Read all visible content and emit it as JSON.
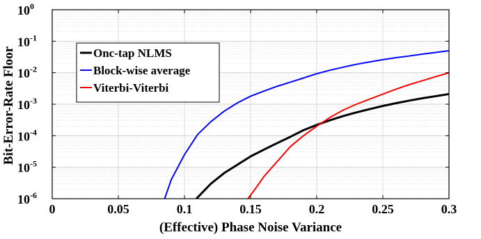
{
  "chart_data": {
    "type": "line",
    "title": "",
    "xlabel": "(Effective) Phase Noise Variance",
    "ylabel": "Bit-Error-Rate Floor",
    "xlim": [
      0,
      0.3
    ],
    "ylim": [
      1e-06,
      1
    ],
    "yscale": "log",
    "grid": true,
    "legend_position": "upper-left",
    "x_ticks": [
      {
        "value": 0,
        "label": "0"
      },
      {
        "value": 0.05,
        "label": "0.05"
      },
      {
        "value": 0.1,
        "label": "0.1"
      },
      {
        "value": 0.15,
        "label": "0.15"
      },
      {
        "value": 0.2,
        "label": "0.2"
      },
      {
        "value": 0.25,
        "label": "0.25"
      },
      {
        "value": 0.3,
        "label": "0.3"
      }
    ],
    "y_ticks": [
      {
        "value": 1e-06,
        "base": "10",
        "exp": "-6"
      },
      {
        "value": 1e-05,
        "base": "10",
        "exp": "-5"
      },
      {
        "value": 0.0001,
        "base": "10",
        "exp": "-4"
      },
      {
        "value": 0.001,
        "base": "10",
        "exp": "-3"
      },
      {
        "value": 0.01,
        "base": "10",
        "exp": "-2"
      },
      {
        "value": 0.1,
        "base": "10",
        "exp": "-1"
      },
      {
        "value": 1,
        "base": "10",
        "exp": "0"
      }
    ],
    "series": [
      {
        "name": "Onc-tap NLMS",
        "color": "#000000",
        "stroke_width": 3,
        "x": [
          0.109,
          0.12,
          0.13,
          0.14,
          0.15,
          0.16,
          0.17,
          0.18,
          0.19,
          0.2,
          0.21,
          0.22,
          0.23,
          0.24,
          0.25,
          0.26,
          0.27,
          0.28,
          0.29,
          0.3
        ],
        "y": [
          1e-06,
          3e-06,
          6.5e-06,
          1.2e-05,
          2.2e-05,
          3.6e-05,
          5.8e-05,
          9.2e-05,
          0.00015,
          0.00022,
          0.00031,
          0.00042,
          0.00055,
          0.0007,
          0.00088,
          0.00108,
          0.0013,
          0.00155,
          0.0018,
          0.0021
        ]
      },
      {
        "name": "Block-wise average",
        "color": "#0000ff",
        "stroke_width": 2,
        "x": [
          0.085,
          0.09,
          0.1,
          0.11,
          0.12,
          0.13,
          0.14,
          0.15,
          0.16,
          0.17,
          0.18,
          0.19,
          0.2,
          0.21,
          0.22,
          0.23,
          0.24,
          0.25,
          0.26,
          0.27,
          0.28,
          0.29,
          0.3
        ],
        "y": [
          1e-06,
          4e-06,
          2.5e-05,
          0.00011,
          0.00028,
          0.0006,
          0.0011,
          0.0018,
          0.0026,
          0.0037,
          0.005,
          0.0068,
          0.0093,
          0.012,
          0.015,
          0.0185,
          0.022,
          0.026,
          0.03,
          0.034,
          0.039,
          0.044,
          0.05
        ]
      },
      {
        "name": "Viterbi-Viterbi",
        "color": "#ff0000",
        "stroke_width": 2,
        "x": [
          0.148,
          0.155,
          0.16,
          0.17,
          0.18,
          0.19,
          0.2,
          0.21,
          0.22,
          0.23,
          0.24,
          0.25,
          0.26,
          0.27,
          0.28,
          0.29,
          0.3
        ],
        "y": [
          1e-06,
          2.5e-06,
          5e-06,
          1.5e-05,
          4.5e-05,
          0.0001,
          0.0002,
          0.00038,
          0.00065,
          0.001,
          0.00145,
          0.0021,
          0.003,
          0.0042,
          0.0056,
          0.0075,
          0.01
        ]
      }
    ]
  }
}
